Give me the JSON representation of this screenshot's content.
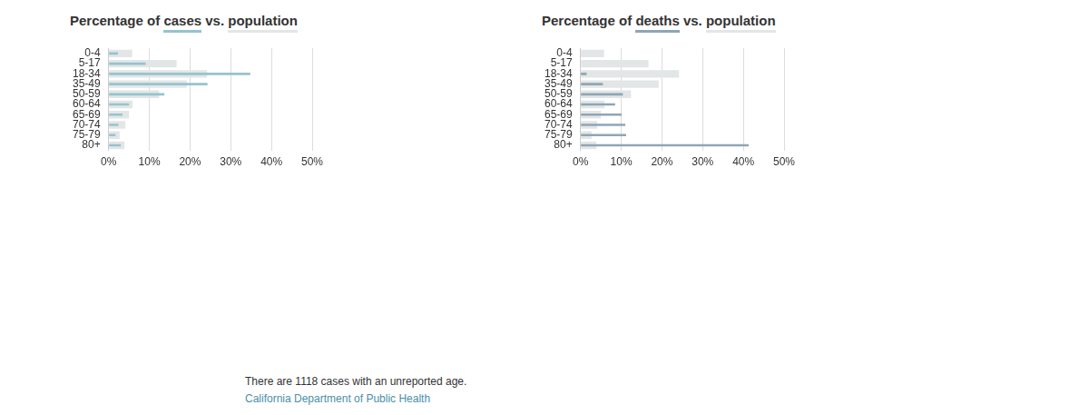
{
  "chart_data": [
    {
      "type": "bar",
      "orientation": "horizontal",
      "title": "Percentage of cases vs. population",
      "categories": [
        "0-4",
        "5-17",
        "18-34",
        "35-49",
        "50-59",
        "60-64",
        "65-69",
        "70-74",
        "75-79",
        "80+"
      ],
      "series": [
        {
          "name": "cases",
          "color": "#96c3cf",
          "values": [
            2.3,
            9.1,
            34.8,
            24.3,
            13.7,
            5.0,
            3.4,
            2.4,
            1.7,
            3.0
          ]
        },
        {
          "name": "population",
          "color": "#e3e6e6",
          "values": [
            5.8,
            16.7,
            24.2,
            19.2,
            12.4,
            5.9,
            5.0,
            4.1,
            2.7,
            3.9
          ]
        }
      ],
      "xlim": [
        0,
        50
      ],
      "xticks": [
        {
          "value": 0,
          "label": "0%"
        },
        {
          "value": 10,
          "label": "10%"
        },
        {
          "value": 20,
          "label": "20%"
        },
        {
          "value": 30,
          "label": "30%"
        },
        {
          "value": 40,
          "label": "40%"
        },
        {
          "value": 50,
          "label": "50%"
        }
      ],
      "grid": true
    },
    {
      "type": "bar",
      "orientation": "horizontal",
      "title": "Percentage of deaths vs. population",
      "categories": [
        "0-4",
        "5-17",
        "18-34",
        "35-49",
        "50-59",
        "60-64",
        "65-69",
        "70-74",
        "75-79",
        "80+"
      ],
      "series": [
        {
          "name": "deaths",
          "color": "#8fa6b4",
          "values": [
            0,
            0,
            1.5,
            5.5,
            10.4,
            8.5,
            10.1,
            11.0,
            11.2,
            41.3
          ]
        },
        {
          "name": "population",
          "color": "#e3e6e6",
          "values": [
            5.8,
            16.7,
            24.2,
            19.2,
            12.4,
            5.9,
            5.0,
            4.1,
            2.7,
            3.9
          ]
        }
      ],
      "xlim": [
        0,
        50
      ],
      "xticks": [
        {
          "value": 0,
          "label": "0%"
        },
        {
          "value": 10,
          "label": "10%"
        },
        {
          "value": 20,
          "label": "20%"
        },
        {
          "value": 30,
          "label": "30%"
        },
        {
          "value": 40,
          "label": "40%"
        },
        {
          "value": 50,
          "label": "50%"
        }
      ],
      "grid": true
    }
  ],
  "note": "There are 1118 cases with an unreported age.",
  "source": "California Department of Public Health"
}
